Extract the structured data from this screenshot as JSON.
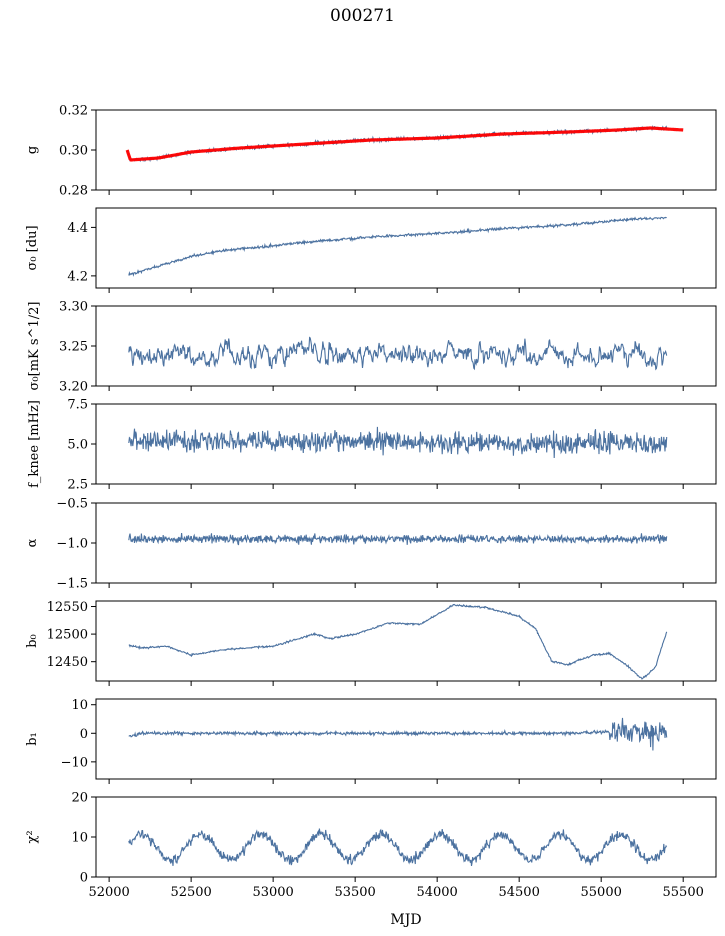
{
  "figure_title": "000271",
  "x_axis": {
    "label": "MJD",
    "ticks": [
      52000,
      52500,
      53000,
      53500,
      54000,
      54500,
      55000,
      55500
    ],
    "range": [
      51920,
      55700
    ]
  },
  "colors": {
    "series": "#4c72a0",
    "fit": "#ff0000",
    "axis": "#000000"
  },
  "chart_data": [
    {
      "type": "line",
      "ylabel": "g",
      "ylim": [
        0.28,
        0.32
      ],
      "yticks": [
        "0.32",
        "0.30",
        "0.28"
      ],
      "ytick_values": [
        0.32,
        0.3,
        0.28
      ],
      "series": [
        {
          "kind": "noisy",
          "x": [
            52110,
            52130,
            52300,
            52500,
            52800,
            53200,
            53600,
            54000,
            54400,
            54800,
            55100,
            55300,
            55400
          ],
          "y": [
            0.3,
            0.295,
            0.296,
            0.299,
            0.301,
            0.303,
            0.305,
            0.306,
            0.308,
            0.309,
            0.31,
            0.311,
            0.311
          ],
          "noise": 0.0009,
          "end": 55400
        },
        {
          "kind": "fit",
          "x": [
            52110,
            52130,
            52300,
            52500,
            52800,
            53200,
            53600,
            54000,
            54400,
            54800,
            55100,
            55300,
            55500
          ],
          "y": [
            0.3,
            0.295,
            0.296,
            0.299,
            0.301,
            0.303,
            0.305,
            0.306,
            0.308,
            0.309,
            0.31,
            0.311,
            0.31
          ]
        }
      ]
    },
    {
      "type": "line",
      "ylabel": "σ₀ [du]",
      "ylim": [
        4.15,
        4.48
      ],
      "yticks": [
        "4.4",
        "4.2"
      ],
      "ytick_values": [
        4.4,
        4.2
      ],
      "series": [
        {
          "kind": "noisy",
          "x": [
            52120,
            52300,
            52500,
            52700,
            53000,
            53300,
            53600,
            54000,
            54400,
            54800,
            55200,
            55400
          ],
          "y": [
            4.205,
            4.24,
            4.28,
            4.305,
            4.325,
            4.345,
            4.36,
            4.375,
            4.395,
            4.41,
            4.435,
            4.44
          ],
          "noise": 0.005,
          "end": 55400
        }
      ]
    },
    {
      "type": "line",
      "ylabel": "σ₀[mK s^1/2]",
      "ylim": [
        3.2,
        3.3
      ],
      "yticks": [
        "3.30",
        "3.25",
        "3.20"
      ],
      "ytick_values": [
        3.3,
        3.25,
        3.2
      ],
      "series": [
        {
          "kind": "noisy",
          "x": [
            52120,
            55400
          ],
          "y": [
            3.24,
            3.24
          ],
          "noise": 0.012,
          "end": 55400
        }
      ]
    },
    {
      "type": "line",
      "ylabel": "f_knee [mHz]",
      "ylim": [
        2.5,
        7.5
      ],
      "yticks": [
        "7.5",
        "5.0",
        "2.5"
      ],
      "ytick_values": [
        7.5,
        5.0,
        2.5
      ],
      "series": [
        {
          "kind": "noisy",
          "x": [
            52120,
            55400
          ],
          "y": [
            5.2,
            5.0
          ],
          "noise": 0.6,
          "end": 55400
        }
      ]
    },
    {
      "type": "line",
      "ylabel": "α",
      "ylim": [
        -1.5,
        -0.5
      ],
      "yticks": [
        "−0.5",
        "−1.0",
        "−1.5"
      ],
      "ytick_values": [
        -0.5,
        -1.0,
        -1.5
      ],
      "series": [
        {
          "kind": "noisy",
          "x": [
            52120,
            55400
          ],
          "y": [
            -0.95,
            -0.95
          ],
          "noise": 0.05,
          "end": 55400
        }
      ]
    },
    {
      "type": "line",
      "ylabel": "b₀",
      "ylim": [
        12415,
        12560
      ],
      "yticks": [
        "12550",
        "12500",
        "12450"
      ],
      "ytick_values": [
        12550,
        12500,
        12450
      ],
      "series": [
        {
          "kind": "noisy",
          "x": [
            52120,
            52200,
            52350,
            52500,
            52700,
            53000,
            53250,
            53350,
            53500,
            53700,
            53900,
            54100,
            54300,
            54500,
            54600,
            54700,
            54800,
            54950,
            55050,
            55150,
            55250,
            55330,
            55400
          ],
          "y": [
            12480,
            12475,
            12478,
            12462,
            12472,
            12478,
            12500,
            12492,
            12500,
            12520,
            12518,
            12553,
            12548,
            12532,
            12510,
            12450,
            12445,
            12462,
            12465,
            12445,
            12418,
            12440,
            12505
          ],
          "noise": 1.5,
          "end": 55400
        }
      ]
    },
    {
      "type": "line",
      "ylabel": "b₁",
      "ylim": [
        -16,
        12
      ],
      "yticks": [
        "10",
        "0",
        "−10"
      ],
      "ytick_values": [
        10,
        0,
        -10
      ],
      "series": [
        {
          "kind": "noisy",
          "x": [
            52120,
            52200,
            54800,
            55100,
            55400
          ],
          "y": [
            -1,
            0,
            0,
            0.5,
            0
          ],
          "noise": 0.5,
          "end": 55400
        }
      ]
    },
    {
      "type": "line",
      "ylabel": "χ²",
      "ylim": [
        0,
        20
      ],
      "yticks": [
        "20",
        "10",
        "0"
      ],
      "ytick_values": [
        20,
        10,
        0
      ],
      "series": [
        {
          "kind": "noisy",
          "x": [
            52120,
            55400
          ],
          "y": [
            7.5,
            7.5
          ],
          "noise": 1.2,
          "end": 55400
        }
      ]
    }
  ]
}
